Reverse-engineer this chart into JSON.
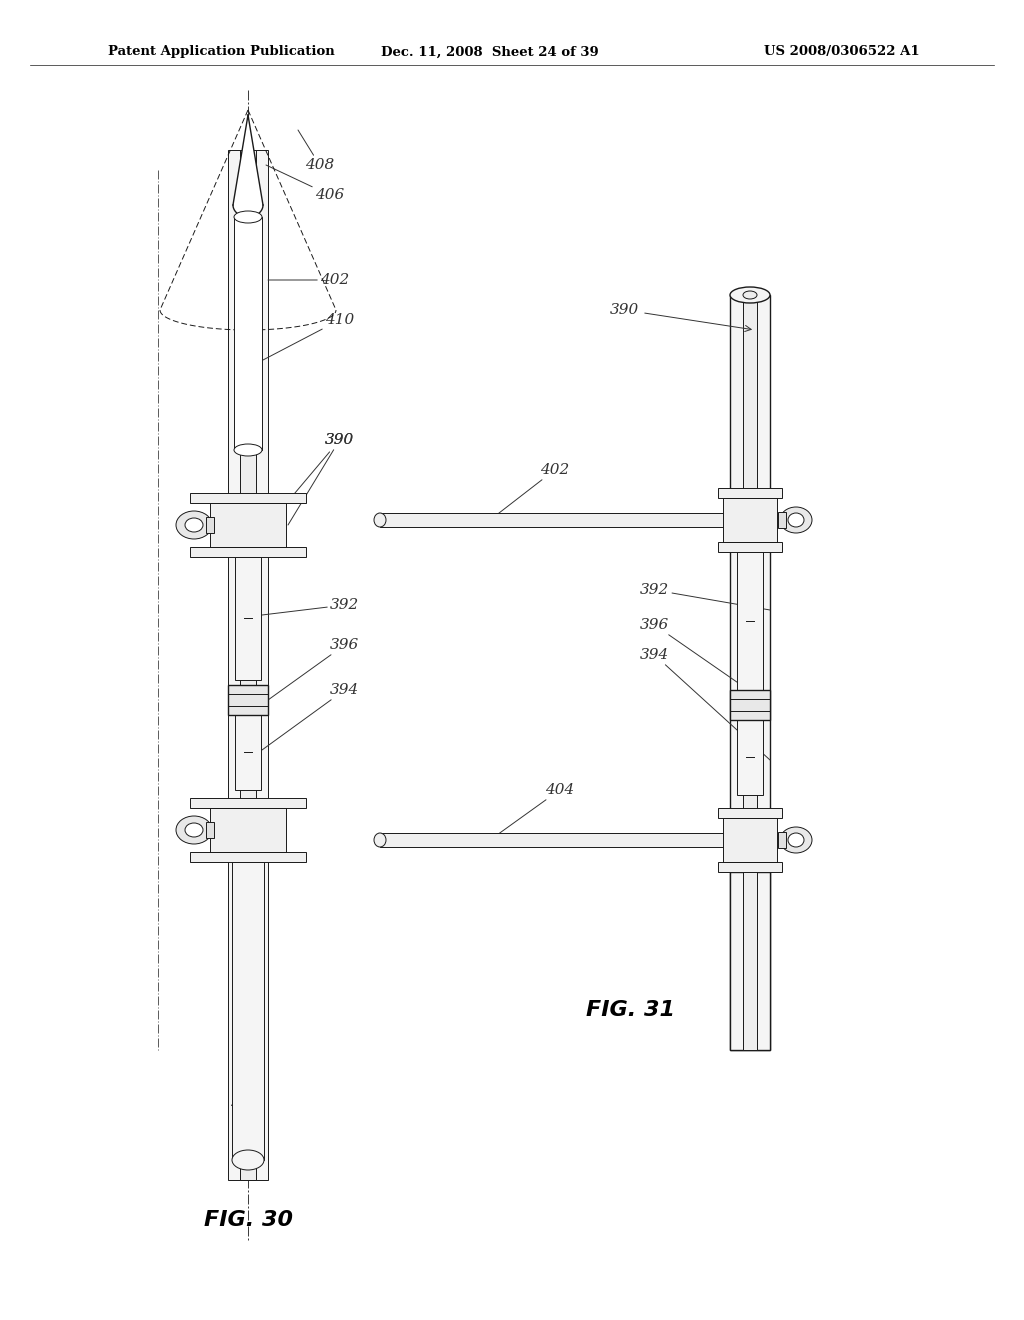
{
  "header_left": "Patent Application Publication",
  "header_mid": "Dec. 11, 2008  Sheet 24 of 39",
  "header_right": "US 2008/0306522 A1",
  "fig30_label": "FIG. 30",
  "fig31_label": "FIG. 31",
  "background": "#ffffff",
  "line_color": "#1a1a1a",
  "label_color": "#333333"
}
